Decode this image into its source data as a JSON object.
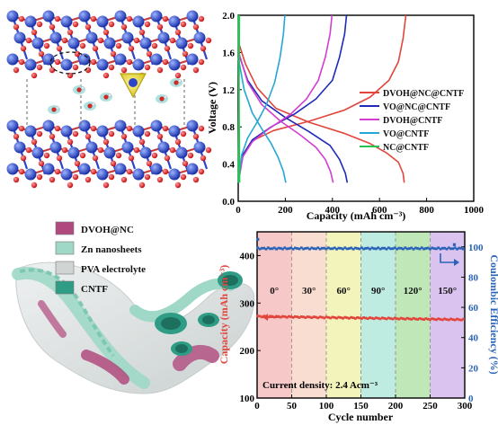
{
  "figure": {
    "panel_crystal": {
      "description": ""
    },
    "panel_device": {
      "legend": [
        {
          "label": "DVOH@NC",
          "color": "#b04a7e"
        },
        {
          "label": "Zn nanosheets",
          "color": "#9fd8c6"
        },
        {
          "label": "PVA electrolyte",
          "color": "#d0d5d4"
        },
        {
          "label": "CNTF",
          "color": "#2f9c85"
        }
      ]
    }
  },
  "chart_data": [
    {
      "type": "line",
      "xlabel": "Capacity (mAh cm⁻³)",
      "ylabel": "Voltage (V)",
      "xlim": [
        0,
        1000
      ],
      "ylim": [
        0,
        2.0
      ],
      "xticks": [
        "0",
        "200",
        "400",
        "600",
        "800",
        "1000"
      ],
      "yticks": [
        "0.0",
        "0.4",
        "0.8",
        "1.2",
        "1.6",
        "2.0"
      ],
      "legend_position": "right",
      "series": [
        {
          "name": "DVOH@NC@CNTF",
          "color": "#e2453c",
          "charge": [
            [
              0,
              0.2
            ],
            [
              20,
              0.5
            ],
            [
              60,
              0.65
            ],
            [
              150,
              0.76
            ],
            [
              300,
              0.86
            ],
            [
              450,
              0.98
            ],
            [
              560,
              1.12
            ],
            [
              640,
              1.3
            ],
            [
              680,
              1.5
            ],
            [
              700,
              1.75
            ],
            [
              712,
              2.0
            ]
          ],
          "discharge": [
            [
              0,
              1.72
            ],
            [
              30,
              1.48
            ],
            [
              80,
              1.22
            ],
            [
              160,
              1.0
            ],
            [
              300,
              0.85
            ],
            [
              450,
              0.73
            ],
            [
              560,
              0.62
            ],
            [
              630,
              0.52
            ],
            [
              680,
              0.42
            ],
            [
              700,
              0.3
            ],
            [
              705,
              0.2
            ]
          ]
        },
        {
          "name": "VO@NC@CNTF",
          "color": "#1f2ab8",
          "charge": [
            [
              0,
              0.2
            ],
            [
              20,
              0.5
            ],
            [
              60,
              0.66
            ],
            [
              140,
              0.8
            ],
            [
              240,
              0.94
            ],
            [
              330,
              1.1
            ],
            [
              400,
              1.3
            ],
            [
              430,
              1.55
            ],
            [
              452,
              1.8
            ],
            [
              460,
              2.0
            ]
          ],
          "discharge": [
            [
              0,
              1.6
            ],
            [
              40,
              1.3
            ],
            [
              100,
              1.08
            ],
            [
              200,
              0.9
            ],
            [
              300,
              0.75
            ],
            [
              390,
              0.6
            ],
            [
              430,
              0.45
            ],
            [
              455,
              0.3
            ],
            [
              463,
              0.2
            ]
          ]
        },
        {
          "name": "DVOH@CNTF",
          "color": "#d23ecf",
          "charge": [
            [
              0,
              0.2
            ],
            [
              20,
              0.48
            ],
            [
              60,
              0.64
            ],
            [
              130,
              0.78
            ],
            [
              220,
              0.93
            ],
            [
              290,
              1.1
            ],
            [
              340,
              1.3
            ],
            [
              370,
              1.55
            ],
            [
              390,
              1.8
            ],
            [
              398,
              2.0
            ]
          ],
          "discharge": [
            [
              0,
              1.62
            ],
            [
              40,
              1.28
            ],
            [
              100,
              1.04
            ],
            [
              180,
              0.86
            ],
            [
              260,
              0.72
            ],
            [
              330,
              0.58
            ],
            [
              370,
              0.45
            ],
            [
              392,
              0.32
            ],
            [
              403,
              0.2
            ]
          ]
        },
        {
          "name": "VO@CNTF",
          "color": "#25a7d5",
          "charge": [
            [
              0,
              0.2
            ],
            [
              15,
              0.5
            ],
            [
              40,
              0.68
            ],
            [
              80,
              0.85
            ],
            [
              120,
              1.04
            ],
            [
              155,
              1.28
            ],
            [
              178,
              1.55
            ],
            [
              192,
              1.8
            ],
            [
              198,
              2.0
            ]
          ],
          "discharge": [
            [
              0,
              1.55
            ],
            [
              25,
              1.2
            ],
            [
              60,
              0.95
            ],
            [
              100,
              0.78
            ],
            [
              140,
              0.62
            ],
            [
              170,
              0.47
            ],
            [
              192,
              0.32
            ],
            [
              202,
              0.2
            ]
          ]
        },
        {
          "name": "NC@CNTF",
          "color": "#22c552",
          "charge": [
            [
              0,
              0.2
            ],
            [
              3,
              1.0
            ],
            [
              5,
              2.0
            ]
          ],
          "discharge": [
            [
              0,
              2.0
            ],
            [
              4,
              1.0
            ],
            [
              6,
              0.2
            ]
          ]
        }
      ]
    },
    {
      "type": "scatter",
      "xlabel": "Cycle number",
      "ylabel": "Capacity (mAh cm⁻³)",
      "ylabel_right": "Coulombic Efficiency (%)",
      "xlim": [
        0,
        300
      ],
      "ylim": [
        100,
        450
      ],
      "ylim_right": [
        0,
        110
      ],
      "xticks": [
        "0",
        "50",
        "100",
        "150",
        "200",
        "250",
        "300"
      ],
      "yticks": [
        "100",
        "200",
        "300",
        "400"
      ],
      "yticks_right": [
        "0",
        "20",
        "40",
        "60",
        "80",
        "100"
      ],
      "annotation": "Current density: 2.4 Acm⁻³",
      "bend_regions": [
        {
          "label": "0°",
          "from": 0,
          "to": 50,
          "color": "#f3b6b6"
        },
        {
          "label": "30°",
          "from": 50,
          "to": 100,
          "color": "#f7d1c0"
        },
        {
          "label": "60°",
          "from": 100,
          "to": 150,
          "color": "#eef0a6"
        },
        {
          "label": "90°",
          "from": 150,
          "to": 200,
          "color": "#a8e6d7"
        },
        {
          "label": "120°",
          "from": 200,
          "to": 250,
          "color": "#a9dfa0"
        },
        {
          "label": "150°",
          "from": 250,
          "to": 300,
          "color": "#cdb0ea"
        }
      ],
      "series": [
        {
          "name": "Capacity",
          "color": "#e2453c",
          "axis": "left",
          "start": 272,
          "end": 265
        },
        {
          "name": "Coulombic Efficiency",
          "color": "#2a63b8",
          "axis": "right",
          "start": 99,
          "end": 99
        }
      ]
    }
  ]
}
